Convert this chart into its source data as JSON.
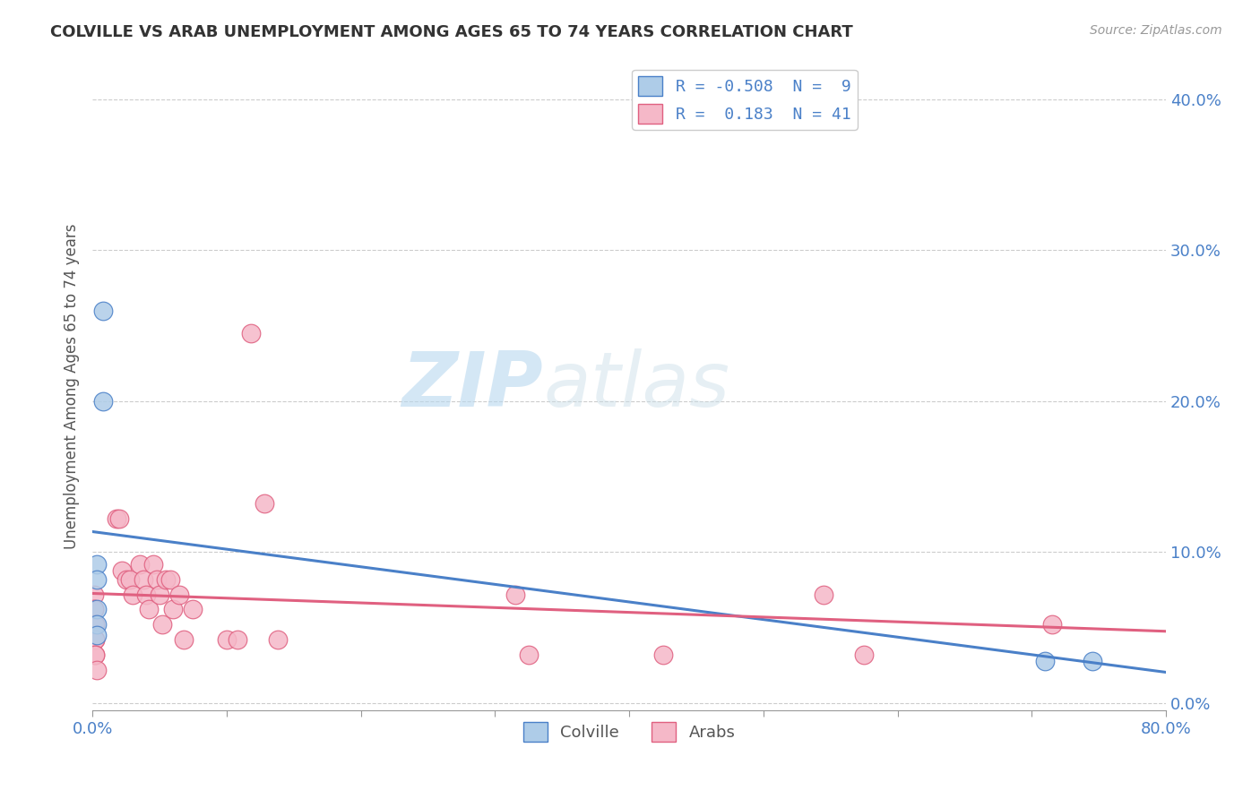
{
  "title": "COLVILLE VS ARAB UNEMPLOYMENT AMONG AGES 65 TO 74 YEARS CORRELATION CHART",
  "source": "Source: ZipAtlas.com",
  "ylabel": "Unemployment Among Ages 65 to 74 years",
  "colville_R": -0.508,
  "colville_N": 9,
  "arab_R": 0.183,
  "arab_N": 41,
  "xlim": [
    0.0,
    0.8
  ],
  "ylim": [
    -0.005,
    0.425
  ],
  "yticks": [
    0.0,
    0.1,
    0.2,
    0.3,
    0.4
  ],
  "xticks": [
    0.0,
    0.1,
    0.2,
    0.3,
    0.4,
    0.5,
    0.6,
    0.7,
    0.8
  ],
  "colville_color": "#aecce8",
  "arab_color": "#f5b8c8",
  "colville_line_color": "#4a80c8",
  "arab_line_color": "#e06080",
  "colville_x": [
    0.003,
    0.003,
    0.003,
    0.003,
    0.003,
    0.008,
    0.008,
    0.71,
    0.745
  ],
  "colville_y": [
    0.092,
    0.082,
    0.062,
    0.052,
    0.045,
    0.26,
    0.2,
    0.028,
    0.028
  ],
  "arab_x": [
    0.001,
    0.001,
    0.001,
    0.001,
    0.002,
    0.002,
    0.002,
    0.002,
    0.002,
    0.003,
    0.018,
    0.02,
    0.022,
    0.025,
    0.028,
    0.03,
    0.035,
    0.038,
    0.04,
    0.042,
    0.045,
    0.048,
    0.05,
    0.052,
    0.055,
    0.058,
    0.06,
    0.065,
    0.068,
    0.075,
    0.1,
    0.108,
    0.118,
    0.128,
    0.138,
    0.315,
    0.325,
    0.425,
    0.545,
    0.575,
    0.715
  ],
  "arab_y": [
    0.072,
    0.062,
    0.062,
    0.052,
    0.052,
    0.042,
    0.042,
    0.032,
    0.032,
    0.022,
    0.122,
    0.122,
    0.088,
    0.082,
    0.082,
    0.072,
    0.092,
    0.082,
    0.072,
    0.062,
    0.092,
    0.082,
    0.072,
    0.052,
    0.082,
    0.082,
    0.062,
    0.072,
    0.042,
    0.062,
    0.042,
    0.042,
    0.245,
    0.132,
    0.042,
    0.072,
    0.032,
    0.032,
    0.072,
    0.032,
    0.052
  ],
  "background_color": "#ffffff",
  "grid_color": "#cccccc"
}
